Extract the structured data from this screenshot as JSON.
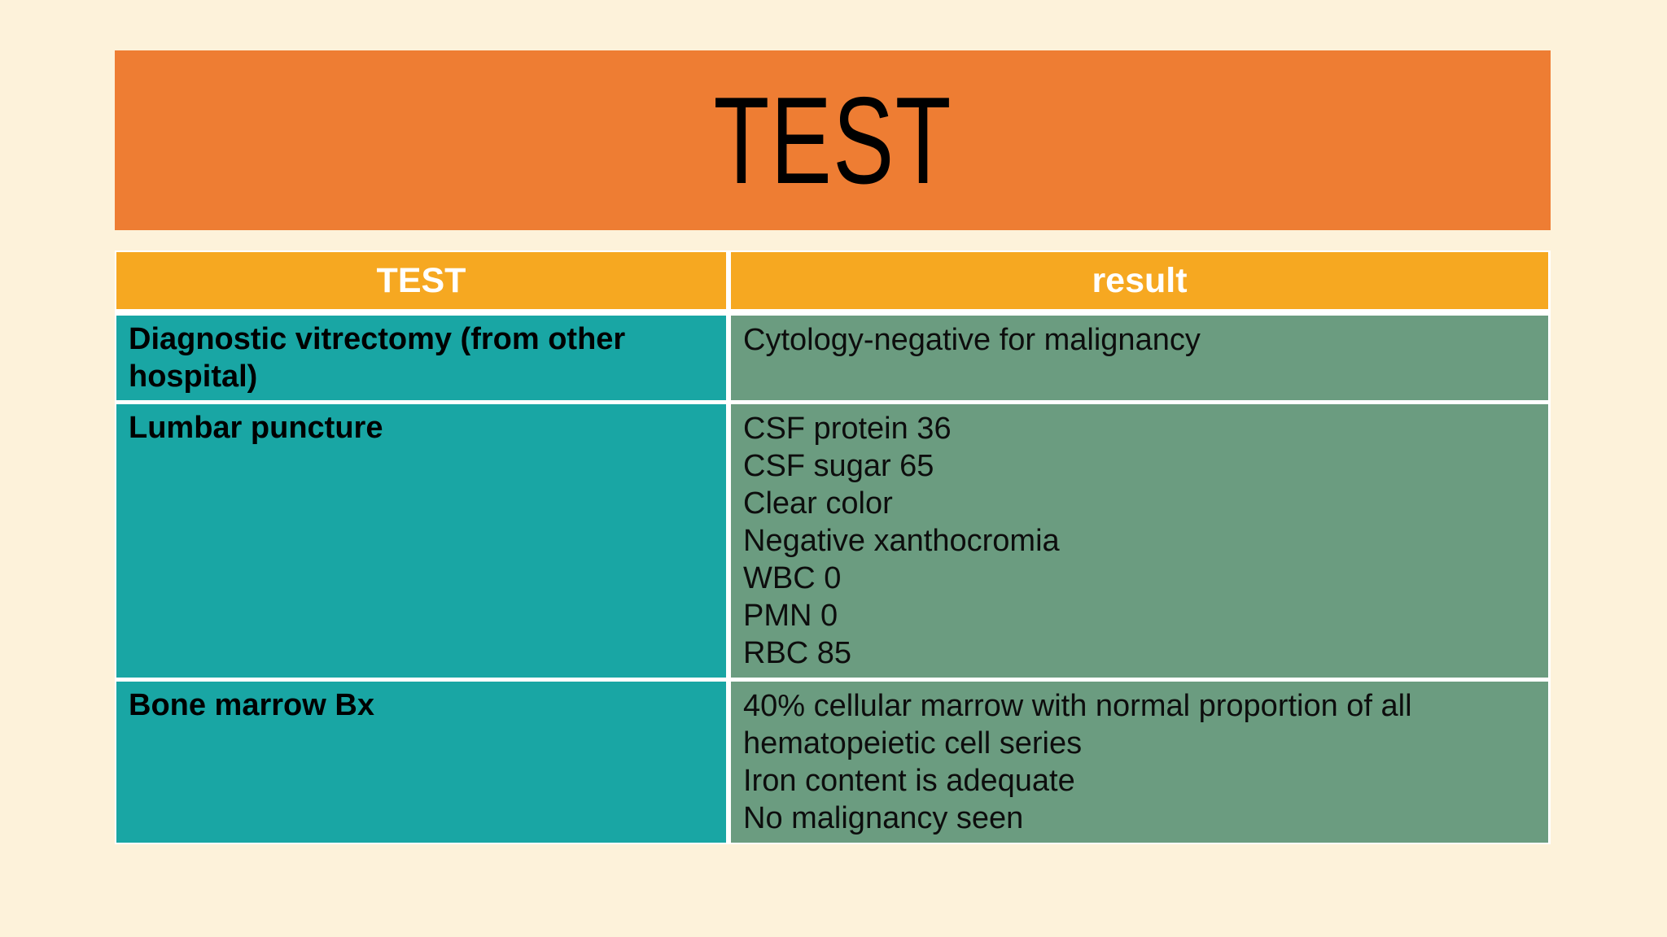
{
  "slide": {
    "title": "TEST",
    "background_color": "#FDF2DA",
    "title_banner_color": "#EE7D33",
    "title_text_color": "#000000"
  },
  "table": {
    "style": {
      "header_bg": "#F6A821",
      "header_text_color": "#FFFFFF",
      "test_column_bg": "#19A6A4",
      "result_column_bg": "#6B9C80",
      "gridline_color": "#FFFFFF"
    },
    "columns": [
      {
        "label": "TEST"
      },
      {
        "label": "result"
      }
    ],
    "rows": [
      {
        "test": "Diagnostic vitrectomy (from other hospital)",
        "result_lines": [
          "Cytology-negative for malignancy"
        ]
      },
      {
        "test": "Lumbar puncture",
        "result_lines": [
          "CSF protein 36",
          "CSF sugar 65",
          "Clear color",
          "Negative xanthocromia",
          "WBC 0",
          "PMN 0",
          "RBC 85"
        ]
      },
      {
        "test": "Bone marrow Bx",
        "result_lines": [
          "40% cellular marrow with normal proportion of all hematopeietic cell series",
          "Iron content is adequate",
          "No malignancy seen"
        ]
      }
    ]
  }
}
